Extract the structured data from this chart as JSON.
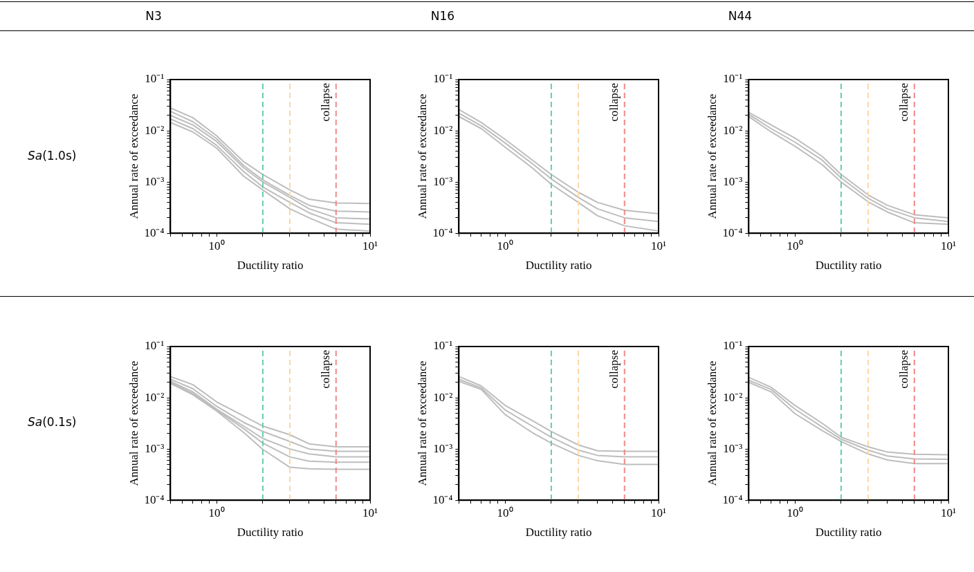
{
  "chart_data": [
    {
      "type": "other",
      "annotations": [
        "N3",
        "N16",
        "N44",
        "Sa(1.0s)",
        "Sa(0.1s)"
      ]
    },
    {
      "type": "line",
      "xlabel": "Ductility ratio",
      "ylabel": "Annual rate of exceedance",
      "log": "xy",
      "grid": false,
      "legend": false,
      "marker": "none",
      "line_style": "solid",
      "xlim": [
        0.5,
        10
      ],
      "ylim": [
        0.0001,
        0.1
      ],
      "xticks": [
        {
          "value": 0.5,
          "label": null
        },
        {
          "value": 0.6,
          "label": null
        },
        {
          "value": 0.7,
          "label": null
        },
        {
          "value": 0.8,
          "label": null
        },
        {
          "value": 0.9,
          "label": null
        },
        {
          "value": 1,
          "label": "10⁰"
        },
        {
          "value": 2,
          "label": null
        },
        {
          "value": 3,
          "label": null
        },
        {
          "value": 4,
          "label": null
        },
        {
          "value": 5,
          "label": null
        },
        {
          "value": 6,
          "label": null
        },
        {
          "value": 7,
          "label": null
        },
        {
          "value": 8,
          "label": null
        },
        {
          "value": 9,
          "label": null
        },
        {
          "value": 10,
          "label": "10¹"
        }
      ],
      "yticks": [
        {
          "value": 0.0001,
          "label": "10⁻⁴"
        },
        {
          "value": 0.0002,
          "label": null
        },
        {
          "value": 0.0003,
          "label": null
        },
        {
          "value": 0.0004,
          "label": null
        },
        {
          "value": 0.0005,
          "label": null
        },
        {
          "value": 0.0006,
          "label": null
        },
        {
          "value": 0.0007,
          "label": null
        },
        {
          "value": 0.0008,
          "label": null
        },
        {
          "value": 0.0009,
          "label": null
        },
        {
          "value": 0.001,
          "label": "10⁻³"
        },
        {
          "value": 0.002,
          "label": null
        },
        {
          "value": 0.003,
          "label": null
        },
        {
          "value": 0.004,
          "label": null
        },
        {
          "value": 0.005,
          "label": null
        },
        {
          "value": 0.006,
          "label": null
        },
        {
          "value": 0.007,
          "label": null
        },
        {
          "value": 0.008,
          "label": null
        },
        {
          "value": 0.009,
          "label": null
        },
        {
          "value": 0.01,
          "label": "10⁻²"
        },
        {
          "value": 0.02,
          "label": null
        },
        {
          "value": 0.03,
          "label": null
        },
        {
          "value": 0.04,
          "label": null
        },
        {
          "value": 0.05,
          "label": null
        },
        {
          "value": 0.06,
          "label": null
        },
        {
          "value": 0.07,
          "label": null
        },
        {
          "value": 0.08,
          "label": null
        },
        {
          "value": 0.09,
          "label": null
        },
        {
          "value": 0.1,
          "label": "10⁻¹"
        }
      ],
      "x": [
        0.5,
        0.7,
        1,
        1.5,
        2,
        3,
        4,
        6,
        10
      ],
      "series": [
        {
          "color": "#bdbdbd",
          "values": [
            0.028,
            0.018,
            0.008,
            0.0025,
            0.0014,
            0.0007,
            0.00046,
            0.00039,
            0.00038
          ]
        },
        {
          "color": "#bdbdbd",
          "values": [
            0.024,
            0.015,
            0.007,
            0.0021,
            0.0011,
            0.00055,
            0.00035,
            0.00027,
            0.00026
          ]
        },
        {
          "color": "#bdbdbd",
          "values": [
            0.02,
            0.013,
            0.0062,
            0.0019,
            0.001,
            0.0005,
            0.0003,
            0.0002,
            0.00019
          ]
        },
        {
          "color": "#bdbdbd",
          "values": [
            0.017,
            0.011,
            0.0052,
            0.0016,
            0.0008,
            0.0004,
            0.00025,
            0.00016,
            0.00015
          ]
        },
        {
          "color": "#bdbdbd",
          "values": [
            0.0145,
            0.0095,
            0.0046,
            0.0013,
            0.0007,
            0.0003,
            0.0002,
            0.00012,
            0.00011
          ]
        }
      ],
      "ref_lines": [
        {
          "axis": "x",
          "value": 2,
          "color": "#66cdaa",
          "line_style": "dashed"
        },
        {
          "axis": "x",
          "value": 3,
          "color": "#ffd6a8",
          "line_style": "dashed"
        },
        {
          "axis": "x",
          "value": 6,
          "color": "#f08888",
          "line_style": "dashed",
          "label": "collapse"
        }
      ]
    },
    {
      "type": "line",
      "xlabel": "Ductility ratio",
      "ylabel": "Annual rate of exceedance",
      "log": "xy",
      "grid": false,
      "legend": false,
      "marker": "none",
      "line_style": "solid",
      "xlim": [
        0.5,
        10
      ],
      "ylim": [
        0.0001,
        0.1
      ],
      "xticks": [
        {
          "value": 0.5,
          "label": null
        },
        {
          "value": 0.6,
          "label": null
        },
        {
          "value": 0.7,
          "label": null
        },
        {
          "value": 0.8,
          "label": null
        },
        {
          "value": 0.9,
          "label": null
        },
        {
          "value": 1,
          "label": "10⁰"
        },
        {
          "value": 2,
          "label": null
        },
        {
          "value": 3,
          "label": null
        },
        {
          "value": 4,
          "label": null
        },
        {
          "value": 5,
          "label": null
        },
        {
          "value": 6,
          "label": null
        },
        {
          "value": 7,
          "label": null
        },
        {
          "value": 8,
          "label": null
        },
        {
          "value": 9,
          "label": null
        },
        {
          "value": 10,
          "label": "10¹"
        }
      ],
      "yticks": [
        {
          "value": 0.0001,
          "label": "10⁻⁴"
        },
        {
          "value": 0.0002,
          "label": null
        },
        {
          "value": 0.0003,
          "label": null
        },
        {
          "value": 0.0004,
          "label": null
        },
        {
          "value": 0.0005,
          "label": null
        },
        {
          "value": 0.0006,
          "label": null
        },
        {
          "value": 0.0007,
          "label": null
        },
        {
          "value": 0.0008,
          "label": null
        },
        {
          "value": 0.0009,
          "label": null
        },
        {
          "value": 0.001,
          "label": "10⁻³"
        },
        {
          "value": 0.002,
          "label": null
        },
        {
          "value": 0.003,
          "label": null
        },
        {
          "value": 0.004,
          "label": null
        },
        {
          "value": 0.005,
          "label": null
        },
        {
          "value": 0.006,
          "label": null
        },
        {
          "value": 0.007,
          "label": null
        },
        {
          "value": 0.008,
          "label": null
        },
        {
          "value": 0.009,
          "label": null
        },
        {
          "value": 0.01,
          "label": "10⁻²"
        },
        {
          "value": 0.02,
          "label": null
        },
        {
          "value": 0.03,
          "label": null
        },
        {
          "value": 0.04,
          "label": null
        },
        {
          "value": 0.05,
          "label": null
        },
        {
          "value": 0.06,
          "label": null
        },
        {
          "value": 0.07,
          "label": null
        },
        {
          "value": 0.08,
          "label": null
        },
        {
          "value": 0.09,
          "label": null
        },
        {
          "value": 0.1,
          "label": "10⁻¹"
        }
      ],
      "x": [
        0.5,
        0.7,
        1,
        1.5,
        2,
        3,
        4,
        6,
        10
      ],
      "series": [
        {
          "color": "#bdbdbd",
          "values": [
            0.026,
            0.0145,
            0.0068,
            0.0027,
            0.0014,
            0.00063,
            0.0004,
            0.00028,
            0.00024
          ]
        },
        {
          "color": "#bdbdbd",
          "values": [
            0.022,
            0.0125,
            0.0058,
            0.0023,
            0.00115,
            0.0005,
            0.0003,
            0.0002,
            0.00017
          ]
        },
        {
          "color": "#bdbdbd",
          "values": [
            0.019,
            0.011,
            0.0048,
            0.0019,
            0.0009,
            0.0004,
            0.00022,
            0.00014,
            0.00011
          ]
        }
      ],
      "ref_lines": [
        {
          "axis": "x",
          "value": 2,
          "color": "#66cdaa",
          "line_style": "dashed"
        },
        {
          "axis": "x",
          "value": 3,
          "color": "#ffd6a8",
          "line_style": "dashed"
        },
        {
          "axis": "x",
          "value": 6,
          "color": "#f08888",
          "line_style": "dashed",
          "label": "collapse"
        }
      ]
    },
    {
      "type": "line",
      "xlabel": "Ductility ratio",
      "ylabel": "Annual rate of exceedance",
      "log": "xy",
      "grid": false,
      "legend": false,
      "marker": "none",
      "line_style": "solid",
      "xlim": [
        0.5,
        10
      ],
      "ylim": [
        0.0001,
        0.1
      ],
      "xticks": [
        {
          "value": 0.5,
          "label": null
        },
        {
          "value": 0.6,
          "label": null
        },
        {
          "value": 0.7,
          "label": null
        },
        {
          "value": 0.8,
          "label": null
        },
        {
          "value": 0.9,
          "label": null
        },
        {
          "value": 1,
          "label": "10⁰"
        },
        {
          "value": 2,
          "label": null
        },
        {
          "value": 3,
          "label": null
        },
        {
          "value": 4,
          "label": null
        },
        {
          "value": 5,
          "label": null
        },
        {
          "value": 6,
          "label": null
        },
        {
          "value": 7,
          "label": null
        },
        {
          "value": 8,
          "label": null
        },
        {
          "value": 9,
          "label": null
        },
        {
          "value": 10,
          "label": "10¹"
        }
      ],
      "yticks": [
        {
          "value": 0.0001,
          "label": "10⁻⁴"
        },
        {
          "value": 0.0002,
          "label": null
        },
        {
          "value": 0.0003,
          "label": null
        },
        {
          "value": 0.0004,
          "label": null
        },
        {
          "value": 0.0005,
          "label": null
        },
        {
          "value": 0.0006,
          "label": null
        },
        {
          "value": 0.0007,
          "label": null
        },
        {
          "value": 0.0008,
          "label": null
        },
        {
          "value": 0.0009,
          "label": null
        },
        {
          "value": 0.001,
          "label": "10⁻³"
        },
        {
          "value": 0.002,
          "label": null
        },
        {
          "value": 0.003,
          "label": null
        },
        {
          "value": 0.004,
          "label": null
        },
        {
          "value": 0.005,
          "label": null
        },
        {
          "value": 0.006,
          "label": null
        },
        {
          "value": 0.007,
          "label": null
        },
        {
          "value": 0.008,
          "label": null
        },
        {
          "value": 0.009,
          "label": null
        },
        {
          "value": 0.01,
          "label": "10⁻²"
        },
        {
          "value": 0.02,
          "label": null
        },
        {
          "value": 0.03,
          "label": null
        },
        {
          "value": 0.04,
          "label": null
        },
        {
          "value": 0.05,
          "label": null
        },
        {
          "value": 0.06,
          "label": null
        },
        {
          "value": 0.07,
          "label": null
        },
        {
          "value": 0.08,
          "label": null
        },
        {
          "value": 0.09,
          "label": null
        },
        {
          "value": 0.1,
          "label": "10⁻¹"
        }
      ],
      "x": [
        0.5,
        0.7,
        1,
        1.5,
        2,
        3,
        4,
        6,
        10
      ],
      "series": [
        {
          "color": "#bdbdbd",
          "values": [
            0.023,
            0.013,
            0.0072,
            0.0032,
            0.0014,
            0.00056,
            0.00035,
            0.00023,
            0.0002
          ]
        },
        {
          "color": "#bdbdbd",
          "values": [
            0.021,
            0.011,
            0.006,
            0.0027,
            0.0012,
            0.00048,
            0.0003,
            0.0002,
            0.00017
          ]
        },
        {
          "color": "#bdbdbd",
          "values": [
            0.019,
            0.0095,
            0.005,
            0.0022,
            0.001,
            0.00041,
            0.00026,
            0.00016,
            0.00015
          ]
        }
      ],
      "ref_lines": [
        {
          "axis": "x",
          "value": 2,
          "color": "#66cdaa",
          "line_style": "dashed"
        },
        {
          "axis": "x",
          "value": 3,
          "color": "#ffd6a8",
          "line_style": "dashed"
        },
        {
          "axis": "x",
          "value": 6,
          "color": "#f08888",
          "line_style": "dashed",
          "label": "collapse"
        }
      ]
    },
    {
      "type": "line",
      "xlabel": "Ductility ratio",
      "ylabel": "Annual rate of exceedance",
      "log": "xy",
      "grid": false,
      "legend": false,
      "marker": "none",
      "line_style": "solid",
      "xlim": [
        0.5,
        10
      ],
      "ylim": [
        0.0001,
        0.1
      ],
      "xticks": [
        {
          "value": 0.5,
          "label": null
        },
        {
          "value": 0.6,
          "label": null
        },
        {
          "value": 0.7,
          "label": null
        },
        {
          "value": 0.8,
          "label": null
        },
        {
          "value": 0.9,
          "label": null
        },
        {
          "value": 1,
          "label": "10⁰"
        },
        {
          "value": 2,
          "label": null
        },
        {
          "value": 3,
          "label": null
        },
        {
          "value": 4,
          "label": null
        },
        {
          "value": 5,
          "label": null
        },
        {
          "value": 6,
          "label": null
        },
        {
          "value": 7,
          "label": null
        },
        {
          "value": 8,
          "label": null
        },
        {
          "value": 9,
          "label": null
        },
        {
          "value": 10,
          "label": "10¹"
        }
      ],
      "yticks": [
        {
          "value": 0.0001,
          "label": "10⁻⁴"
        },
        {
          "value": 0.0002,
          "label": null
        },
        {
          "value": 0.0003,
          "label": null
        },
        {
          "value": 0.0004,
          "label": null
        },
        {
          "value": 0.0005,
          "label": null
        },
        {
          "value": 0.0006,
          "label": null
        },
        {
          "value": 0.0007,
          "label": null
        },
        {
          "value": 0.0008,
          "label": null
        },
        {
          "value": 0.0009,
          "label": null
        },
        {
          "value": 0.001,
          "label": "10⁻³"
        },
        {
          "value": 0.002,
          "label": null
        },
        {
          "value": 0.003,
          "label": null
        },
        {
          "value": 0.004,
          "label": null
        },
        {
          "value": 0.005,
          "label": null
        },
        {
          "value": 0.006,
          "label": null
        },
        {
          "value": 0.007,
          "label": null
        },
        {
          "value": 0.008,
          "label": null
        },
        {
          "value": 0.009,
          "label": null
        },
        {
          "value": 0.01,
          "label": "10⁻²"
        },
        {
          "value": 0.02,
          "label": null
        },
        {
          "value": 0.03,
          "label": null
        },
        {
          "value": 0.04,
          "label": null
        },
        {
          "value": 0.05,
          "label": null
        },
        {
          "value": 0.06,
          "label": null
        },
        {
          "value": 0.07,
          "label": null
        },
        {
          "value": 0.08,
          "label": null
        },
        {
          "value": 0.09,
          "label": null
        },
        {
          "value": 0.1,
          "label": "10⁻¹"
        }
      ],
      "x": [
        0.5,
        0.7,
        1,
        1.5,
        2,
        3,
        4,
        6,
        10
      ],
      "series": [
        {
          "color": "#bdbdbd",
          "values": [
            0.026,
            0.018,
            0.0083,
            0.0044,
            0.0028,
            0.0019,
            0.00126,
            0.0011,
            0.0011
          ]
        },
        {
          "color": "#bdbdbd",
          "values": [
            0.023,
            0.015,
            0.0068,
            0.0033,
            0.0022,
            0.0014,
            0.001,
            0.0009,
            0.0009
          ]
        },
        {
          "color": "#bdbdbd",
          "values": [
            0.021,
            0.013,
            0.006,
            0.0028,
            0.0016,
            0.001,
            0.0008,
            0.0007,
            0.0007
          ]
        },
        {
          "color": "#bdbdbd",
          "values": [
            0.02,
            0.012,
            0.0058,
            0.0025,
            0.0013,
            0.0007,
            0.00058,
            0.00055,
            0.00055
          ]
        },
        {
          "color": "#bdbdbd",
          "values": [
            0.019,
            0.0115,
            0.0055,
            0.0021,
            0.00098,
            0.00044,
            0.00041,
            0.0004,
            0.0004
          ]
        }
      ],
      "ref_lines": [
        {
          "axis": "x",
          "value": 2,
          "color": "#66cdaa",
          "line_style": "dashed"
        },
        {
          "axis": "x",
          "value": 3,
          "color": "#ffd6a8",
          "line_style": "dashed"
        },
        {
          "axis": "x",
          "value": 6,
          "color": "#f08888",
          "line_style": "dashed",
          "label": "collapse"
        }
      ]
    },
    {
      "type": "line",
      "xlabel": "Ductility ratio",
      "ylabel": "Annual rate of exceedance",
      "log": "xy",
      "grid": false,
      "legend": false,
      "marker": "none",
      "line_style": "solid",
      "xlim": [
        0.5,
        10
      ],
      "ylim": [
        0.0001,
        0.1
      ],
      "xticks": [
        {
          "value": 0.5,
          "label": null
        },
        {
          "value": 0.6,
          "label": null
        },
        {
          "value": 0.7,
          "label": null
        },
        {
          "value": 0.8,
          "label": null
        },
        {
          "value": 0.9,
          "label": null
        },
        {
          "value": 1,
          "label": "10⁰"
        },
        {
          "value": 2,
          "label": null
        },
        {
          "value": 3,
          "label": null
        },
        {
          "value": 4,
          "label": null
        },
        {
          "value": 5,
          "label": null
        },
        {
          "value": 6,
          "label": null
        },
        {
          "value": 7,
          "label": null
        },
        {
          "value": 8,
          "label": null
        },
        {
          "value": 9,
          "label": null
        },
        {
          "value": 10,
          "label": "10¹"
        }
      ],
      "yticks": [
        {
          "value": 0.0001,
          "label": "10⁻⁴"
        },
        {
          "value": 0.0002,
          "label": null
        },
        {
          "value": 0.0003,
          "label": null
        },
        {
          "value": 0.0004,
          "label": null
        },
        {
          "value": 0.0005,
          "label": null
        },
        {
          "value": 0.0006,
          "label": null
        },
        {
          "value": 0.0007,
          "label": null
        },
        {
          "value": 0.0008,
          "label": null
        },
        {
          "value": 0.0009,
          "label": null
        },
        {
          "value": 0.001,
          "label": "10⁻³"
        },
        {
          "value": 0.002,
          "label": null
        },
        {
          "value": 0.003,
          "label": null
        },
        {
          "value": 0.004,
          "label": null
        },
        {
          "value": 0.005,
          "label": null
        },
        {
          "value": 0.006,
          "label": null
        },
        {
          "value": 0.007,
          "label": null
        },
        {
          "value": 0.008,
          "label": null
        },
        {
          "value": 0.009,
          "label": null
        },
        {
          "value": 0.01,
          "label": "10⁻²"
        },
        {
          "value": 0.02,
          "label": null
        },
        {
          "value": 0.03,
          "label": null
        },
        {
          "value": 0.04,
          "label": null
        },
        {
          "value": 0.05,
          "label": null
        },
        {
          "value": 0.06,
          "label": null
        },
        {
          "value": 0.07,
          "label": null
        },
        {
          "value": 0.08,
          "label": null
        },
        {
          "value": 0.09,
          "label": null
        },
        {
          "value": 0.1,
          "label": "10⁻¹"
        }
      ],
      "x": [
        0.5,
        0.7,
        1,
        1.5,
        2,
        3,
        4,
        6,
        10
      ],
      "series": [
        {
          "color": "#bdbdbd",
          "values": [
            0.026,
            0.017,
            0.0071,
            0.0036,
            0.0022,
            0.0012,
            0.00092,
            0.0009,
            0.0009
          ]
        },
        {
          "color": "#bdbdbd",
          "values": [
            0.023,
            0.0155,
            0.0058,
            0.0028,
            0.0017,
            0.00095,
            0.00075,
            0.0007,
            0.0007
          ]
        },
        {
          "color": "#bdbdbd",
          "values": [
            0.021,
            0.0145,
            0.0047,
            0.0021,
            0.0013,
            0.00075,
            0.00059,
            0.0005,
            0.0005
          ]
        }
      ],
      "ref_lines": [
        {
          "axis": "x",
          "value": 2,
          "color": "#66cdaa",
          "line_style": "dashed"
        },
        {
          "axis": "x",
          "value": 3,
          "color": "#ffd6a8",
          "line_style": "dashed"
        },
        {
          "axis": "x",
          "value": 6,
          "color": "#f08888",
          "line_style": "dashed",
          "label": "collapse"
        }
      ]
    },
    {
      "type": "line",
      "xlabel": "Ductility ratio",
      "ylabel": "Annual rate of exceedance",
      "log": "xy",
      "grid": false,
      "legend": false,
      "marker": "none",
      "line_style": "solid",
      "xlim": [
        0.5,
        10
      ],
      "ylim": [
        0.0001,
        0.1
      ],
      "xticks": [
        {
          "value": 0.5,
          "label": null
        },
        {
          "value": 0.6,
          "label": null
        },
        {
          "value": 0.7,
          "label": null
        },
        {
          "value": 0.8,
          "label": null
        },
        {
          "value": 0.9,
          "label": null
        },
        {
          "value": 1,
          "label": "10⁰"
        },
        {
          "value": 2,
          "label": null
        },
        {
          "value": 3,
          "label": null
        },
        {
          "value": 4,
          "label": null
        },
        {
          "value": 5,
          "label": null
        },
        {
          "value": 6,
          "label": null
        },
        {
          "value": 7,
          "label": null
        },
        {
          "value": 8,
          "label": null
        },
        {
          "value": 9,
          "label": null
        },
        {
          "value": 10,
          "label": "10¹"
        }
      ],
      "yticks": [
        {
          "value": 0.0001,
          "label": "10⁻⁴"
        },
        {
          "value": 0.0002,
          "label": null
        },
        {
          "value": 0.0003,
          "label": null
        },
        {
          "value": 0.0004,
          "label": null
        },
        {
          "value": 0.0005,
          "label": null
        },
        {
          "value": 0.0006,
          "label": null
        },
        {
          "value": 0.0007,
          "label": null
        },
        {
          "value": 0.0008,
          "label": null
        },
        {
          "value": 0.0009,
          "label": null
        },
        {
          "value": 0.001,
          "label": "10⁻³"
        },
        {
          "value": 0.002,
          "label": null
        },
        {
          "value": 0.003,
          "label": null
        },
        {
          "value": 0.004,
          "label": null
        },
        {
          "value": 0.005,
          "label": null
        },
        {
          "value": 0.006,
          "label": null
        },
        {
          "value": 0.007,
          "label": null
        },
        {
          "value": 0.008,
          "label": null
        },
        {
          "value": 0.009,
          "label": null
        },
        {
          "value": 0.01,
          "label": "10⁻²"
        },
        {
          "value": 0.02,
          "label": null
        },
        {
          "value": 0.03,
          "label": null
        },
        {
          "value": 0.04,
          "label": null
        },
        {
          "value": 0.05,
          "label": null
        },
        {
          "value": 0.06,
          "label": null
        },
        {
          "value": 0.07,
          "label": null
        },
        {
          "value": 0.08,
          "label": null
        },
        {
          "value": 0.09,
          "label": null
        },
        {
          "value": 0.1,
          "label": "10⁻¹"
        }
      ],
      "x": [
        0.5,
        0.7,
        1,
        1.5,
        2,
        3,
        4,
        6,
        10
      ],
      "series": [
        {
          "color": "#bdbdbd",
          "values": [
            0.025,
            0.016,
            0.0071,
            0.0032,
            0.0017,
            0.0011,
            0.00087,
            0.00079,
            0.00077
          ]
        },
        {
          "color": "#bdbdbd",
          "values": [
            0.022,
            0.0145,
            0.006,
            0.0027,
            0.00155,
            0.00095,
            0.00073,
            0.00064,
            0.00063
          ]
        },
        {
          "color": "#bdbdbd",
          "values": [
            0.02,
            0.013,
            0.0049,
            0.0023,
            0.0014,
            0.0008,
            0.00061,
            0.00052,
            0.00052
          ]
        }
      ],
      "ref_lines": [
        {
          "axis": "x",
          "value": 2,
          "color": "#66cdaa",
          "line_style": "dashed"
        },
        {
          "axis": "x",
          "value": 3,
          "color": "#ffd6a8",
          "line_style": "dashed"
        },
        {
          "axis": "x",
          "value": 6,
          "color": "#f08888",
          "line_style": "dashed",
          "label": "collapse"
        }
      ]
    }
  ]
}
